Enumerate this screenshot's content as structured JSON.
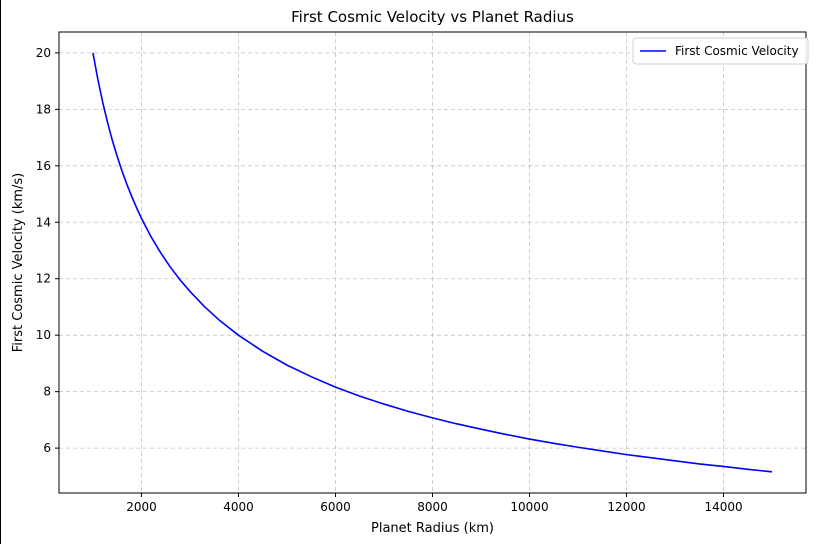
{
  "chart_data": {
    "type": "line",
    "title": "First Cosmic Velocity vs Planet Radius",
    "xlabel": "Planet Radius (km)",
    "ylabel": "First Cosmic Velocity (km/s)",
    "xlim": [
      300,
      15700
    ],
    "ylim": [
      4.41,
      20.74
    ],
    "xticks": [
      2000,
      4000,
      6000,
      8000,
      10000,
      12000,
      14000
    ],
    "xtick_labels": [
      "2000",
      "4000",
      "6000",
      "8000",
      "10000",
      "12000",
      "14000"
    ],
    "yticks": [
      6,
      8,
      10,
      12,
      14,
      16,
      18,
      20
    ],
    "ytick_labels": [
      "6",
      "8",
      "10",
      "12",
      "14",
      "16",
      "18",
      "20"
    ],
    "grid": true,
    "legend_position": "top-right",
    "series": [
      {
        "name": "First Cosmic Velocity",
        "color": "#0000ff",
        "x": [
          1000,
          1100,
          1200,
          1300,
          1400,
          1500,
          1600,
          1700,
          1800,
          1900,
          2000,
          2200,
          2400,
          2600,
          2800,
          3000,
          3300,
          3600,
          4000,
          4500,
          5000,
          5500,
          6000,
          6500,
          7000,
          7500,
          8000,
          8500,
          9000,
          9500,
          10000,
          10500,
          11000,
          11500,
          12000,
          12500,
          13000,
          13500,
          14000,
          14500,
          15000
        ],
        "y": [
          20.0,
          19.07,
          18.26,
          17.54,
          16.9,
          16.33,
          15.81,
          15.34,
          14.91,
          14.51,
          14.14,
          13.48,
          12.91,
          12.4,
          11.95,
          11.55,
          11.01,
          10.54,
          10.0,
          9.43,
          8.94,
          8.53,
          8.16,
          7.84,
          7.56,
          7.3,
          7.07,
          6.86,
          6.67,
          6.49,
          6.32,
          6.17,
          6.03,
          5.9,
          5.77,
          5.66,
          5.55,
          5.44,
          5.35,
          5.25,
          5.16
        ]
      }
    ]
  }
}
